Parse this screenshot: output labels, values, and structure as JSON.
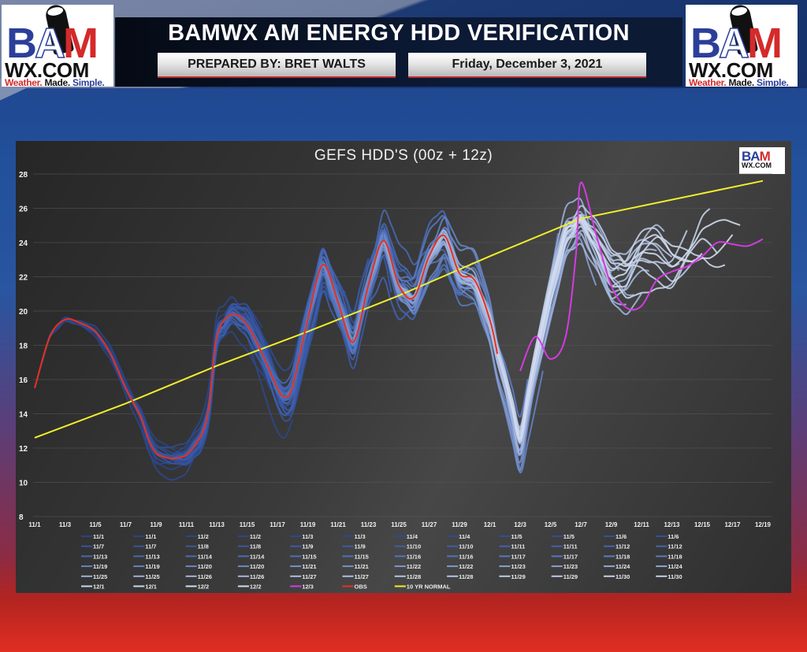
{
  "header": {
    "title": "BAMWX AM ENERGY HDD VERIFICATION",
    "prepared_by": "PREPARED BY: BRET WALTS",
    "date": "Friday, December 3, 2021",
    "logo": {
      "bam": [
        "B",
        "A",
        "M"
      ],
      "wx": "WX.COM",
      "tagline": [
        "Weather.",
        "Made.",
        "Simple."
      ]
    }
  },
  "chart_data": {
    "type": "line",
    "title": "GEFS HDD'S (00z + 12z)",
    "xlabel": "",
    "ylabel": "",
    "ylim": [
      8,
      28
    ],
    "yticks": [
      8,
      10,
      12,
      14,
      16,
      18,
      20,
      22,
      24,
      26,
      28
    ],
    "xticks": [
      "11/1",
      "11/3",
      "11/5",
      "11/7",
      "11/9",
      "11/11",
      "11/13",
      "11/15",
      "11/17",
      "11/19",
      "11/21",
      "11/23",
      "11/25",
      "11/27",
      "11/29",
      "12/1",
      "12/3",
      "12/5",
      "12/7",
      "12/9",
      "12/11",
      "12/13",
      "12/15",
      "12/17",
      "12/19"
    ],
    "x_days_range": [
      0,
      48
    ],
    "grid": true,
    "legend_position": "bottom",
    "series_highlight": [
      {
        "name": "OBS",
        "color": "#e8301e",
        "x": [
          0,
          1,
          2,
          3,
          4,
          5,
          6,
          7,
          7.5,
          8,
          8.5,
          9,
          10,
          11,
          11.5,
          12,
          13,
          14,
          15,
          16,
          16.5,
          17,
          18,
          19,
          20,
          21,
          22,
          23,
          24,
          25,
          26,
          27,
          28,
          29,
          30,
          30.5
        ],
        "values": [
          15.5,
          18.5,
          19.5,
          19.3,
          18.8,
          17.5,
          15.5,
          13.8,
          12.5,
          11.7,
          11.5,
          11.4,
          11.6,
          12.8,
          14.5,
          18.5,
          19.8,
          19.2,
          17.5,
          15.5,
          15.0,
          15.6,
          19.5,
          22.7,
          20.5,
          18.2,
          21.5,
          24.1,
          21.5,
          20.8,
          23.2,
          24.4,
          22.2,
          21.8,
          19.5,
          17.5
        ]
      },
      {
        "name": "12/3",
        "color": "#d43be0",
        "x": [
          32,
          33,
          34,
          35,
          35.7,
          36,
          37,
          38,
          39,
          40,
          41,
          42,
          43,
          44,
          45,
          46,
          47,
          48
        ],
        "values": [
          16.5,
          18.5,
          17.2,
          18.5,
          23.5,
          27.5,
          24.5,
          21.5,
          20.2,
          20.3,
          21.8,
          22.3,
          22.6,
          23.2,
          24.0,
          23.9,
          23.8,
          24.2
        ]
      },
      {
        "name": "10 YR NORMAL",
        "color": "#f2ee2c",
        "x": [
          0,
          6,
          12,
          18,
          24,
          30,
          36,
          42,
          48
        ],
        "values": [
          12.6,
          14.6,
          16.8,
          18.8,
          20.9,
          23.2,
          25.4,
          26.5,
          27.6
        ]
      }
    ],
    "ensemble_note": "Daily GEFS 00z and 12z runs from 11/1 through 12/2 plotted as blue-to-white shaded lines (older = darker blue, newer = lighter).",
    "legend": [
      {
        "label": "11/1",
        "color": "#2a4485"
      },
      {
        "label": "11/1",
        "color": "#2a4485"
      },
      {
        "label": "11/2",
        "color": "#2b4689"
      },
      {
        "label": "11/2",
        "color": "#2b4689"
      },
      {
        "label": "11/3",
        "color": "#2c488c"
      },
      {
        "label": "11/3",
        "color": "#2c488c"
      },
      {
        "label": "11/4",
        "color": "#2e4b90"
      },
      {
        "label": "11/4",
        "color": "#2e4b90"
      },
      {
        "label": "11/5",
        "color": "#304e95"
      },
      {
        "label": "11/5",
        "color": "#304e95"
      },
      {
        "label": "11/6",
        "color": "#32519a"
      },
      {
        "label": "11/6",
        "color": "#32519a"
      },
      {
        "label": "11/7",
        "color": "#35559f"
      },
      {
        "label": "11/7",
        "color": "#35559f"
      },
      {
        "label": "11/8",
        "color": "#3758a3"
      },
      {
        "label": "11/8",
        "color": "#3758a3"
      },
      {
        "label": "11/9",
        "color": "#3a5ba7"
      },
      {
        "label": "11/9",
        "color": "#3a5ba7"
      },
      {
        "label": "11/10",
        "color": "#3d5eab"
      },
      {
        "label": "11/10",
        "color": "#3d5eab"
      },
      {
        "label": "11/11",
        "color": "#4062ae"
      },
      {
        "label": "11/11",
        "color": "#4062ae"
      },
      {
        "label": "11/12",
        "color": "#4365b1"
      },
      {
        "label": "11/12",
        "color": "#4365b1"
      },
      {
        "label": "11/13",
        "color": "#4668b4"
      },
      {
        "label": "11/13",
        "color": "#4668b4"
      },
      {
        "label": "11/14",
        "color": "#4a6cb7"
      },
      {
        "label": "11/14",
        "color": "#4a6cb7"
      },
      {
        "label": "11/15",
        "color": "#4e70ba"
      },
      {
        "label": "11/15",
        "color": "#4e70ba"
      },
      {
        "label": "11/16",
        "color": "#5274bd"
      },
      {
        "label": "11/16",
        "color": "#5274bd"
      },
      {
        "label": "11/17",
        "color": "#5778c0"
      },
      {
        "label": "11/17",
        "color": "#5778c0"
      },
      {
        "label": "11/18",
        "color": "#5c7cc2"
      },
      {
        "label": "11/18",
        "color": "#5c7cc2"
      },
      {
        "label": "11/19",
        "color": "#6482c5"
      },
      {
        "label": "11/19",
        "color": "#6482c5"
      },
      {
        "label": "11/20",
        "color": "#6c89c8"
      },
      {
        "label": "11/20",
        "color": "#6c89c8"
      },
      {
        "label": "11/21",
        "color": "#7590cb"
      },
      {
        "label": "11/21",
        "color": "#7590cb"
      },
      {
        "label": "11/22",
        "color": "#7e98cf"
      },
      {
        "label": "11/22",
        "color": "#7e98cf"
      },
      {
        "label": "11/23",
        "color": "#879fd2"
      },
      {
        "label": "11/23",
        "color": "#879fd2"
      },
      {
        "label": "11/24",
        "color": "#90a7d6"
      },
      {
        "label": "11/24",
        "color": "#90a7d6"
      },
      {
        "label": "11/25",
        "color": "#9aafda"
      },
      {
        "label": "11/25",
        "color": "#9aafda"
      },
      {
        "label": "11/26",
        "color": "#a3b6dd"
      },
      {
        "label": "11/26",
        "color": "#a3b6dd"
      },
      {
        "label": "11/27",
        "color": "#acbde0"
      },
      {
        "label": "11/27",
        "color": "#acbde0"
      },
      {
        "label": "11/28",
        "color": "#b4c3e3"
      },
      {
        "label": "11/28",
        "color": "#b4c3e3"
      },
      {
        "label": "11/29",
        "color": "#bccae6"
      },
      {
        "label": "11/29",
        "color": "#bccae6"
      },
      {
        "label": "11/30",
        "color": "#c4d0e9"
      },
      {
        "label": "11/30",
        "color": "#c4d0e9"
      },
      {
        "label": "12/1",
        "color": "#cbd6ec"
      },
      {
        "label": "12/1",
        "color": "#cbd6ec"
      },
      {
        "label": "12/2",
        "color": "#d2dbee"
      },
      {
        "label": "12/2",
        "color": "#d2dbee"
      },
      {
        "label": "12/3",
        "color": "#d43be0"
      },
      {
        "label": "OBS",
        "color": "#e8301e"
      },
      {
        "label": "10 YR NORMAL",
        "color": "#f2ee2c"
      }
    ]
  }
}
